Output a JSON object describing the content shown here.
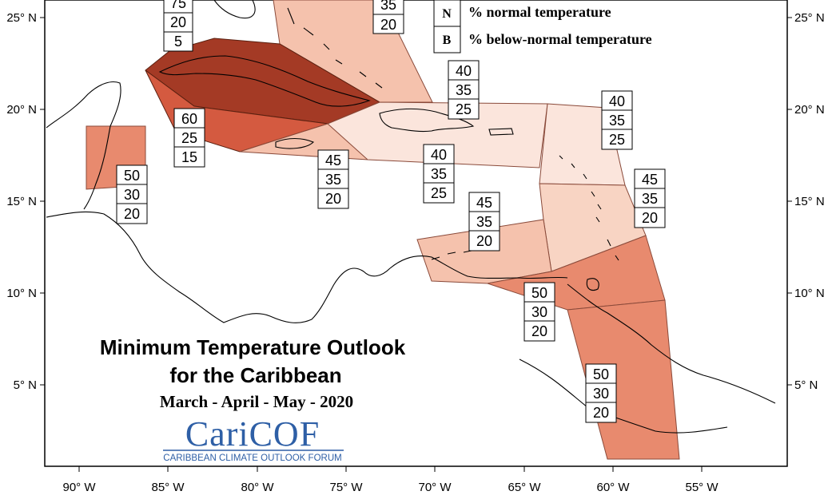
{
  "map": {
    "title_line1": "Minimum Temperature Outlook",
    "title_line2": "for the Caribbean",
    "season": "March - April - May - 2020",
    "logo_text": "CariCOF",
    "logo_subtitle": "CARIBBEAN CLIMATE OUTLOOK FORUM",
    "lon_labels": [
      "90° W",
      "85° W",
      "80° W",
      "75° W",
      "70° W",
      "65° W",
      "60° W",
      "55° W"
    ],
    "lat_labels_left": [
      "25° N",
      "20° N",
      "15° N",
      "10° N",
      "5° N"
    ],
    "lat_labels_right": [
      "25° N",
      "20° N",
      "15° N",
      "10° N",
      "5° N"
    ],
    "legend": [
      {
        "letter": "N",
        "text": "% normal temperature"
      },
      {
        "letter": "B",
        "text": "% below-normal temperature"
      }
    ],
    "probability_boxes": [
      {
        "region": "bahamas-north",
        "values": [
          "75",
          "20",
          "5"
        ]
      },
      {
        "region": "bahamas-east",
        "values": [
          "35",
          "20"
        ]
      },
      {
        "region": "turks-caicos",
        "values": [
          "40",
          "35",
          "25"
        ]
      },
      {
        "region": "cayman-islands",
        "values": [
          "60",
          "25",
          "15"
        ]
      },
      {
        "region": "jamaica",
        "values": [
          "45",
          "35",
          "20"
        ]
      },
      {
        "region": "hispaniola-puerto-rico",
        "values": [
          "40",
          "35",
          "25"
        ]
      },
      {
        "region": "northern-leewards",
        "values": [
          "40",
          "35",
          "25"
        ]
      },
      {
        "region": "windwards",
        "values": [
          "45",
          "35",
          "20"
        ]
      },
      {
        "region": "belize",
        "values": [
          "50",
          "30",
          "20"
        ]
      },
      {
        "region": "abc-islands",
        "values": [
          "45",
          "35",
          "20"
        ]
      },
      {
        "region": "trinidad-tobago",
        "values": [
          "50",
          "30",
          "20"
        ]
      },
      {
        "region": "guianas",
        "values": [
          "50",
          "30",
          "20"
        ]
      }
    ],
    "colors": {
      "prob_75": "#a43a25",
      "prob_60": "#d45a40",
      "prob_50": "#e88a6e",
      "prob_45": "#f5c2ad",
      "prob_40": "#fbe5dc",
      "prob_35": "#f8d4c3"
    }
  }
}
